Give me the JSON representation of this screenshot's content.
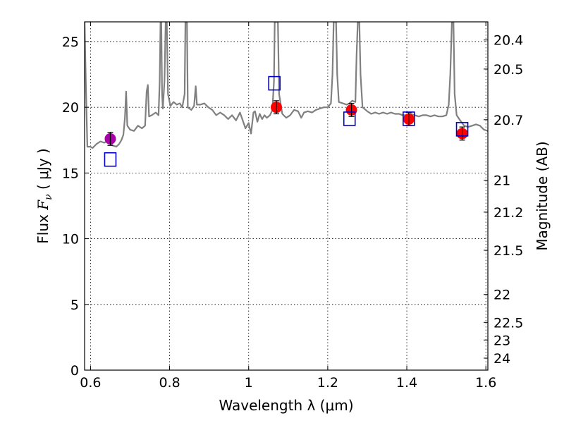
{
  "chart_data": {
    "type": "scatter",
    "xlabel": "Wavelength  λ (μm)",
    "ylabel_prefix": "Flux  ",
    "ylabel_symbol": "F",
    "ylabel_subscript": "ν",
    "ylabel_suffix": "  ( μJy )",
    "y2label": "Magnitude (AB)",
    "xlim": [
      0.585,
      1.605
    ],
    "ylim": [
      0,
      26.5
    ],
    "grid": true,
    "x_ticks": [
      {
        "value": 0.6,
        "label": "0.6"
      },
      {
        "value": 0.8,
        "label": "0.8"
      },
      {
        "value": 1.0,
        "label": "1"
      },
      {
        "value": 1.2,
        "label": "1.2"
      },
      {
        "value": 1.4,
        "label": "1.4"
      },
      {
        "value": 1.6,
        "label": "1.6"
      }
    ],
    "y_ticks": [
      {
        "value": 0,
        "label": "0"
      },
      {
        "value": 5,
        "label": "5"
      },
      {
        "value": 10,
        "label": "10"
      },
      {
        "value": 15,
        "label": "15"
      },
      {
        "value": 20,
        "label": "20"
      },
      {
        "value": 25,
        "label": "25"
      }
    ],
    "y2_ticks": [
      {
        "label": "20.4"
      },
      {
        "label": "20.5"
      },
      {
        "label": "20.7"
      },
      {
        "label": "21"
      },
      {
        "label": "21.2"
      },
      {
        "label": "21.5"
      },
      {
        "label": "22"
      },
      {
        "label": "22.5"
      },
      {
        "label": "23"
      },
      {
        "label": "24"
      }
    ],
    "spectrum": {
      "color": "#808080",
      "points": [
        [
          0.585,
          26.5
        ],
        [
          0.588,
          22
        ],
        [
          0.592,
          17.0
        ],
        [
          0.6,
          17.0
        ],
        [
          0.605,
          16.9
        ],
        [
          0.615,
          17.2
        ],
        [
          0.625,
          17.4
        ],
        [
          0.635,
          17.3
        ],
        [
          0.645,
          17.5
        ],
        [
          0.655,
          17.1
        ],
        [
          0.665,
          17.0
        ],
        [
          0.672,
          17.2
        ],
        [
          0.678,
          17.5
        ],
        [
          0.683,
          17.9
        ],
        [
          0.687,
          19.2
        ],
        [
          0.69,
          21.2
        ],
        [
          0.693,
          18.6
        ],
        [
          0.7,
          18.3
        ],
        [
          0.71,
          18.2
        ],
        [
          0.72,
          18.6
        ],
        [
          0.73,
          18.4
        ],
        [
          0.738,
          18.6
        ],
        [
          0.742,
          21.2
        ],
        [
          0.745,
          21.7
        ],
        [
          0.748,
          19.3
        ],
        [
          0.755,
          19.4
        ],
        [
          0.765,
          19.6
        ],
        [
          0.772,
          19.4
        ],
        [
          0.775,
          22
        ],
        [
          0.777,
          26.5
        ],
        [
          0.779,
          26.5
        ],
        [
          0.781,
          21
        ],
        [
          0.783,
          19.9
        ],
        [
          0.787,
          22
        ],
        [
          0.79,
          26.5
        ],
        [
          0.793,
          26.5
        ],
        [
          0.796,
          21
        ],
        [
          0.802,
          20.1
        ],
        [
          0.81,
          20.4
        ],
        [
          0.818,
          20.2
        ],
        [
          0.826,
          20.3
        ],
        [
          0.832,
          20.0
        ],
        [
          0.838,
          21
        ],
        [
          0.84,
          26.5
        ],
        [
          0.844,
          26.5
        ],
        [
          0.846,
          20.0
        ],
        [
          0.855,
          19.8
        ],
        [
          0.862,
          20.1
        ],
        [
          0.866,
          21.6
        ],
        [
          0.869,
          20.2
        ],
        [
          0.878,
          20.2
        ],
        [
          0.888,
          20.3
        ],
        [
          0.898,
          20.0
        ],
        [
          0.908,
          19.8
        ],
        [
          0.918,
          19.4
        ],
        [
          0.928,
          19.6
        ],
        [
          0.938,
          19.4
        ],
        [
          0.948,
          19.1
        ],
        [
          0.958,
          19.4
        ],
        [
          0.968,
          19.0
        ],
        [
          0.978,
          19.6
        ],
        [
          0.985,
          19.0
        ],
        [
          0.992,
          18.4
        ],
        [
          1.0,
          18.8
        ],
        [
          1.006,
          18.0
        ],
        [
          1.012,
          19.6
        ],
        [
          1.016,
          19.7
        ],
        [
          1.022,
          18.9
        ],
        [
          1.028,
          19.5
        ],
        [
          1.034,
          19.1
        ],
        [
          1.04,
          19.4
        ],
        [
          1.046,
          19.2
        ],
        [
          1.054,
          19.4
        ],
        [
          1.06,
          19.8
        ],
        [
          1.064,
          22
        ],
        [
          1.066,
          26.5
        ],
        [
          1.074,
          26.5
        ],
        [
          1.077,
          21
        ],
        [
          1.085,
          19.5
        ],
        [
          1.095,
          19.2
        ],
        [
          1.105,
          19.4
        ],
        [
          1.115,
          19.8
        ],
        [
          1.125,
          19.7
        ],
        [
          1.133,
          19.2
        ],
        [
          1.14,
          19.6
        ],
        [
          1.15,
          19.7
        ],
        [
          1.16,
          19.6
        ],
        [
          1.17,
          19.8
        ],
        [
          1.18,
          19.9
        ],
        [
          1.19,
          20.0
        ],
        [
          1.2,
          20.0
        ],
        [
          1.208,
          20.3
        ],
        [
          1.212,
          22.5
        ],
        [
          1.215,
          26.5
        ],
        [
          1.221,
          26.5
        ],
        [
          1.224,
          22.5
        ],
        [
          1.228,
          20.4
        ],
        [
          1.238,
          20.3
        ],
        [
          1.248,
          20.2
        ],
        [
          1.255,
          20.3
        ],
        [
          1.262,
          20.5
        ],
        [
          1.27,
          20.4
        ],
        [
          1.273,
          24
        ],
        [
          1.276,
          26.5
        ],
        [
          1.28,
          26.5
        ],
        [
          1.283,
          22.5
        ],
        [
          1.288,
          20.0
        ],
        [
          1.3,
          19.7
        ],
        [
          1.31,
          19.5
        ],
        [
          1.32,
          19.6
        ],
        [
          1.33,
          19.5
        ],
        [
          1.34,
          19.6
        ],
        [
          1.35,
          19.5
        ],
        [
          1.36,
          19.6
        ],
        [
          1.37,
          19.5
        ],
        [
          1.38,
          19.5
        ],
        [
          1.39,
          19.4
        ],
        [
          1.4,
          19.4
        ],
        [
          1.41,
          19.5
        ],
        [
          1.42,
          19.4
        ],
        [
          1.43,
          19.3
        ],
        [
          1.44,
          19.4
        ],
        [
          1.45,
          19.4
        ],
        [
          1.46,
          19.3
        ],
        [
          1.47,
          19.4
        ],
        [
          1.48,
          19.3
        ],
        [
          1.49,
          19.3
        ],
        [
          1.5,
          19.4
        ],
        [
          1.506,
          20.2
        ],
        [
          1.51,
          22.5
        ],
        [
          1.514,
          26.5
        ],
        [
          1.518,
          26.5
        ],
        [
          1.521,
          21
        ],
        [
          1.526,
          19.4
        ],
        [
          1.535,
          19.0
        ],
        [
          1.545,
          18.6
        ],
        [
          1.555,
          18.5
        ],
        [
          1.565,
          18.6
        ],
        [
          1.575,
          18.7
        ],
        [
          1.585,
          18.6
        ],
        [
          1.595,
          18.3
        ],
        [
          1.605,
          18.2
        ]
      ]
    },
    "series": [
      {
        "marker": "circle",
        "color": "#aa00aa",
        "points": [
          {
            "x": 0.65,
            "y": 17.6,
            "err": 0.5
          }
        ]
      },
      {
        "marker": "circle",
        "color": "#ff0000",
        "points": [
          {
            "x": 1.07,
            "y": 20.0,
            "err": 0.5
          },
          {
            "x": 1.26,
            "y": 19.8,
            "err": 0.5
          },
          {
            "x": 1.405,
            "y": 19.1,
            "err": 0.5
          },
          {
            "x": 1.54,
            "y": 18.0,
            "err": 0.5
          }
        ]
      },
      {
        "marker": "open-square",
        "color": "#0000cc",
        "points": [
          {
            "x": 0.65,
            "y": 16.0
          },
          {
            "x": 1.065,
            "y": 21.8
          },
          {
            "x": 1.255,
            "y": 19.1
          },
          {
            "x": 1.405,
            "y": 19.1
          },
          {
            "x": 1.54,
            "y": 18.3
          }
        ]
      }
    ]
  }
}
